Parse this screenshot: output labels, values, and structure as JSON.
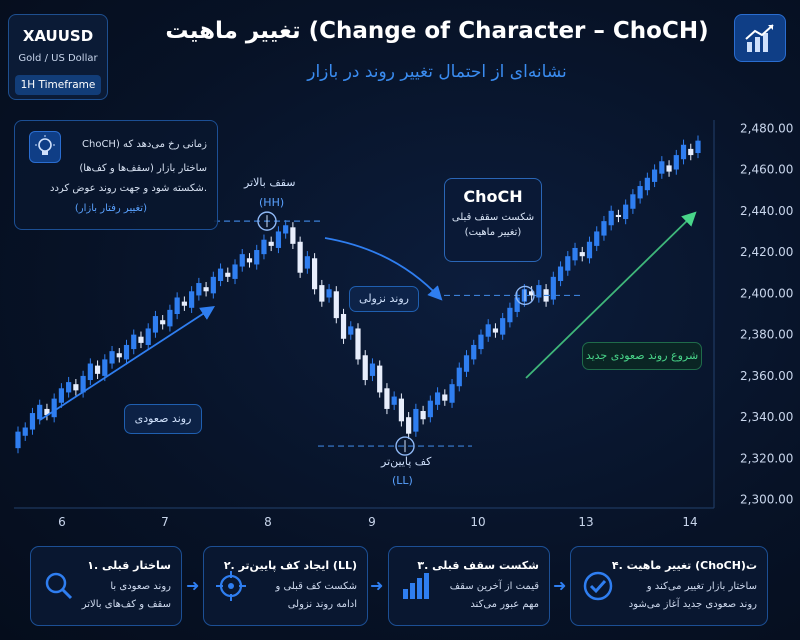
{
  "symbol": {
    "ticker": "XAUUSD",
    "name": "Gold / US Dollar",
    "timeframe": "1H Timeframe"
  },
  "header": {
    "title": "تغییر ماهیت (Change of Character – ChoCH)",
    "subtitle": "نشانه‌ای از احتمال تغییر روند در بازار"
  },
  "info": {
    "line1": "ChoCH) زمانی رخ می‌دهد که",
    "line2": "ساختار بازار (سقف‌ها و کف‌ها)",
    "line3": "شکسته شود و جهت روند عوض کردد.",
    "line4": "(تغییر رفتار بازار)"
  },
  "labels": {
    "hh_top": "سقف بالاتر",
    "hh": "(HH)",
    "ll_top": "کف پایین‌تر",
    "ll": "(LL)",
    "down_trend": "روند نزولی",
    "up_trend": "روند صعودی",
    "choch_title": "ChoCH",
    "choch_line1": "شکست سقف قبلی",
    "choch_line2": "(تغییر ماهیت)",
    "new_up_trend": "شروع روند صعودی جدید"
  },
  "chart_data": {
    "type": "candlestick",
    "symbol": "XAUUSD",
    "x_ticks": [
      "6",
      "7",
      "8",
      "9",
      "10",
      "13",
      "14"
    ],
    "y_ticks": [
      2300,
      2320,
      2340,
      2360,
      2380,
      2400,
      2420,
      2440,
      2460,
      2480
    ],
    "ylim": [
      2296,
      2484
    ],
    "y_tick_labels": [
      "2,300.00",
      "2,320.00",
      "2,340.00",
      "2,360.00",
      "2,380.00",
      "2,400.00",
      "2,420.00",
      "2,440.00",
      "2,460.00",
      "2,480.00"
    ],
    "levels": {
      "hh": 2435,
      "ll": 2326,
      "previous_high": 2399
    },
    "candles": [
      [
        2325,
        2333
      ],
      [
        2331,
        2335
      ],
      [
        2334,
        2342
      ],
      [
        2339,
        2346
      ],
      [
        2344,
        2341
      ],
      [
        2340,
        2349
      ],
      [
        2347,
        2354
      ],
      [
        2352,
        2357
      ],
      [
        2356,
        2353
      ],
      [
        2352,
        2360
      ],
      [
        2358,
        2366
      ],
      [
        2365,
        2361
      ],
      [
        2360,
        2368
      ],
      [
        2366,
        2372
      ],
      [
        2371,
        2369
      ],
      [
        2368,
        2375
      ],
      [
        2373,
        2380
      ],
      [
        2379,
        2376
      ],
      [
        2375,
        2383
      ],
      [
        2381,
        2389
      ],
      [
        2387,
        2385
      ],
      [
        2384,
        2392
      ],
      [
        2390,
        2398
      ],
      [
        2396,
        2394
      ],
      [
        2393,
        2401
      ],
      [
        2399,
        2405
      ],
      [
        2403,
        2401
      ],
      [
        2400,
        2408
      ],
      [
        2406,
        2412
      ],
      [
        2410,
        2408
      ],
      [
        2407,
        2414
      ],
      [
        2413,
        2419
      ],
      [
        2417,
        2415
      ],
      [
        2414,
        2421
      ],
      [
        2419,
        2426
      ],
      [
        2425,
        2423
      ],
      [
        2422,
        2430
      ],
      [
        2429,
        2433
      ],
      [
        2432,
        2424
      ],
      [
        2425,
        2410
      ],
      [
        2412,
        2418
      ],
      [
        2417,
        2402
      ],
      [
        2404,
        2396
      ],
      [
        2398,
        2402
      ],
      [
        2401,
        2388
      ],
      [
        2390,
        2378
      ],
      [
        2380,
        2384
      ],
      [
        2383,
        2368
      ],
      [
        2370,
        2358
      ],
      [
        2360,
        2366
      ],
      [
        2365,
        2352
      ],
      [
        2354,
        2344
      ],
      [
        2346,
        2350
      ],
      [
        2349,
        2338
      ],
      [
        2340,
        2332
      ],
      [
        2333,
        2344
      ],
      [
        2343,
        2339
      ],
      [
        2340,
        2348
      ],
      [
        2346,
        2352
      ],
      [
        2351,
        2348
      ],
      [
        2347,
        2356
      ],
      [
        2355,
        2364
      ],
      [
        2362,
        2370
      ],
      [
        2368,
        2375
      ],
      [
        2373,
        2380
      ],
      [
        2379,
        2385
      ],
      [
        2383,
        2381
      ],
      [
        2380,
        2388
      ],
      [
        2386,
        2393
      ],
      [
        2391,
        2398
      ],
      [
        2396,
        2402
      ],
      [
        2401,
        2399
      ],
      [
        2398,
        2404
      ],
      [
        2402,
        2396
      ],
      [
        2397,
        2408
      ],
      [
        2406,
        2413
      ],
      [
        2411,
        2418
      ],
      [
        2416,
        2422
      ],
      [
        2420,
        2418
      ],
      [
        2417,
        2425
      ],
      [
        2423,
        2430
      ],
      [
        2428,
        2435
      ],
      [
        2433,
        2440
      ],
      [
        2438,
        2437
      ],
      [
        2436,
        2443
      ],
      [
        2441,
        2448
      ],
      [
        2446,
        2452
      ],
      [
        2450,
        2456
      ],
      [
        2454,
        2460
      ],
      [
        2458,
        2464
      ],
      [
        2462,
        2459
      ],
      [
        2460,
        2467
      ],
      [
        2465,
        2472
      ],
      [
        2470,
        2467
      ],
      [
        2468,
        2474
      ]
    ]
  },
  "steps": [
    {
      "title": "۱. ساختار قبلی",
      "line1": "روند صعودی با",
      "line2": "سقف و کف‌های بالاتر"
    },
    {
      "title": "۲. ایجاد کف پایین‌تر (LL)",
      "line1": "شکست کف قبلی و",
      "line2": "ادامه روند نزولی"
    },
    {
      "title": "۳. شکست سقف قبلی",
      "line1": "قیمت از آخرین سقف",
      "line2": "مهم عبور می‌کند"
    },
    {
      "title": "۴. تغییر ماهیت (ChoCH)ت",
      "line1": "ساختار بازار تغییر می‌کند و",
      "line2": "روند صعودی جدید آغاز می‌شود"
    }
  ],
  "colors": {
    "bull": "#2f7ef0",
    "bear": "#e8eefc",
    "accent": "#2f7ef0",
    "green": "#49d68a"
  }
}
